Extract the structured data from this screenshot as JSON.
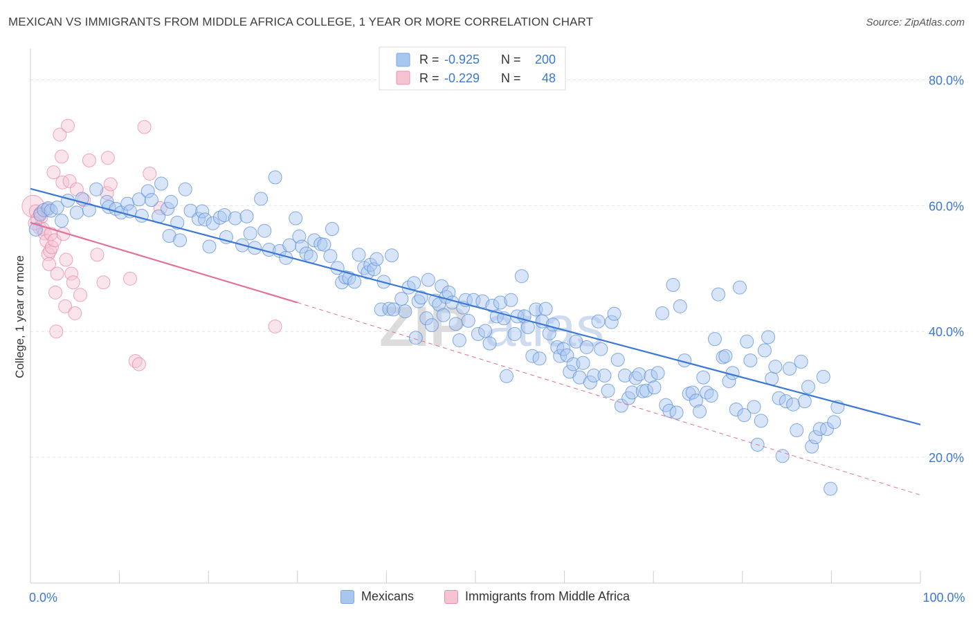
{
  "header": {
    "title": "MEXICAN VS IMMIGRANTS FROM MIDDLE AFRICA COLLEGE, 1 YEAR OR MORE CORRELATION CHART",
    "source": "Source: ZipAtlas.com"
  },
  "watermark": {
    "zip": "ZIP",
    "atlas": "atlas"
  },
  "legend": {
    "rows": [
      {
        "r_label": "R =",
        "r_value": "-0.925",
        "n_label": "N =",
        "n_value": "200",
        "color": "#a9c6ef"
      },
      {
        "r_label": "R =",
        "r_value": "-0.229",
        "n_label": "N =",
        "n_value": "48",
        "color": "#f5b8cb"
      }
    ]
  },
  "bottom_legend": {
    "items": [
      {
        "label": "Mexicans",
        "color": "#a9c6ef",
        "border": "#7aa7e0"
      },
      {
        "label": "Immigrants from Middle Africa",
        "color": "#f5c3d2",
        "border": "#e890aa"
      }
    ]
  },
  "chart_data": {
    "type": "scatter",
    "title": "MEXICAN VS IMMIGRANTS FROM MIDDLE AFRICA COLLEGE, 1 YEAR OR MORE CORRELATION CHART",
    "xlabel": "",
    "ylabel": "College, 1 year or more",
    "xlim": [
      0,
      100
    ],
    "ylim": [
      0,
      85
    ],
    "x_tick_labels": [
      {
        "value": 0,
        "label": "0.0%"
      },
      {
        "value": 100,
        "label": "100.0%"
      }
    ],
    "x_tick_marks": [
      0,
      10,
      20,
      30,
      40,
      50,
      60,
      70,
      80,
      90,
      100
    ],
    "y_ticks": [
      {
        "value": 20,
        "label": "20.0%"
      },
      {
        "value": 40,
        "label": "40.0%"
      },
      {
        "value": 60,
        "label": "60.0%"
      },
      {
        "value": 80,
        "label": "80.0%"
      }
    ],
    "grid": true,
    "series": [
      {
        "name": "Mexicans",
        "color": "#5b8fd9",
        "fill": "#a9c6ef",
        "r": -0.925,
        "n": 200,
        "trend": {
          "x": [
            0,
            100
          ],
          "y": [
            62.7,
            25.2
          ],
          "style": "solid",
          "color": "#3a78d4"
        },
        "points": [
          [
            0.6,
            56.2
          ],
          [
            1.1,
            58.6
          ],
          [
            1.5,
            59.3
          ],
          [
            2.0,
            59.6
          ],
          [
            2.3,
            59.2
          ],
          [
            3.0,
            59.7
          ],
          [
            3.5,
            57.6
          ],
          [
            4.2,
            60.8
          ],
          [
            5.2,
            58.9
          ],
          [
            5.8,
            61.1
          ],
          [
            6.6,
            59.3
          ],
          [
            7.4,
            62.6
          ],
          [
            8.6,
            60.6
          ],
          [
            8.8,
            59.8
          ],
          [
            9.6,
            59.5
          ],
          [
            10.2,
            58.9
          ],
          [
            10.9,
            60.3
          ],
          [
            11.2,
            59.1
          ],
          [
            12.2,
            61.0
          ],
          [
            12.5,
            58.4
          ],
          [
            13.2,
            62.3
          ],
          [
            13.6,
            60.9
          ],
          [
            14.4,
            58.3
          ],
          [
            14.7,
            63.5
          ],
          [
            15.4,
            59.5
          ],
          [
            15.8,
            60.6
          ],
          [
            15.6,
            55.2
          ],
          [
            16.5,
            57.3
          ],
          [
            16.8,
            54.5
          ],
          [
            17.4,
            62.6
          ],
          [
            18.0,
            59.2
          ],
          [
            18.9,
            57.9
          ],
          [
            19.3,
            59.1
          ],
          [
            19.6,
            57.8
          ],
          [
            20.1,
            53.5
          ],
          [
            20.5,
            57.2
          ],
          [
            21.3,
            58.1
          ],
          [
            21.8,
            58.5
          ],
          [
            22.0,
            55.0
          ],
          [
            23.0,
            58.0
          ],
          [
            23.8,
            53.7
          ],
          [
            24.3,
            58.3
          ],
          [
            24.7,
            55.6
          ],
          [
            25.2,
            53.3
          ],
          [
            25.9,
            61.1
          ],
          [
            26.3,
            56.0
          ],
          [
            26.8,
            53.0
          ],
          [
            27.5,
            64.5
          ],
          [
            28.0,
            52.8
          ],
          [
            28.7,
            51.7
          ],
          [
            29.1,
            53.7
          ],
          [
            29.8,
            58.0
          ],
          [
            30.2,
            55.1
          ],
          [
            30.5,
            53.5
          ],
          [
            31.0,
            52.4
          ],
          [
            31.5,
            51.9
          ],
          [
            31.9,
            54.5
          ],
          [
            32.6,
            53.9
          ],
          [
            33.0,
            53.8
          ],
          [
            33.7,
            52.0
          ],
          [
            33.9,
            56.3
          ],
          [
            34.5,
            50.1
          ],
          [
            35.0,
            47.8
          ],
          [
            35.4,
            48.6
          ],
          [
            35.8,
            48.5
          ],
          [
            36.4,
            47.9
          ],
          [
            36.9,
            52.2
          ],
          [
            37.5,
            50.1
          ],
          [
            37.9,
            49.4
          ],
          [
            38.2,
            50.6
          ],
          [
            38.6,
            49.9
          ],
          [
            38.9,
            51.5
          ],
          [
            39.4,
            43.5
          ],
          [
            39.7,
            47.9
          ],
          [
            40.3,
            43.6
          ],
          [
            40.6,
            52.1
          ],
          [
            40.8,
            43.5
          ],
          [
            41.7,
            45.2
          ],
          [
            42.1,
            43.2
          ],
          [
            42.5,
            47.0
          ],
          [
            43.1,
            47.7
          ],
          [
            43.3,
            39.0
          ],
          [
            43.6,
            44.8
          ],
          [
            43.9,
            45.4
          ],
          [
            44.5,
            42.1
          ],
          [
            44.7,
            48.2
          ],
          [
            45.1,
            41.0
          ],
          [
            45.5,
            44.9
          ],
          [
            45.9,
            44.3
          ],
          [
            46.2,
            47.2
          ],
          [
            46.4,
            42.6
          ],
          [
            46.7,
            45.5
          ],
          [
            47.0,
            46.2
          ],
          [
            47.4,
            44.6
          ],
          [
            47.8,
            41.2
          ],
          [
            48.2,
            38.6
          ],
          [
            48.6,
            43.8
          ],
          [
            48.9,
            45.0
          ],
          [
            49.2,
            41.7
          ],
          [
            49.8,
            45.0
          ],
          [
            50.3,
            39.6
          ],
          [
            50.8,
            44.8
          ],
          [
            51.1,
            40.1
          ],
          [
            51.6,
            38.1
          ],
          [
            51.9,
            44.1
          ],
          [
            52.4,
            42.4
          ],
          [
            52.8,
            44.6
          ],
          [
            53.2,
            42.1
          ],
          [
            53.5,
            32.9
          ],
          [
            54.0,
            45.0
          ],
          [
            54.4,
            39.6
          ],
          [
            54.7,
            42.4
          ],
          [
            55.2,
            48.8
          ],
          [
            55.5,
            42.4
          ],
          [
            55.9,
            40.7
          ],
          [
            56.4,
            36.1
          ],
          [
            56.8,
            43.5
          ],
          [
            57.2,
            35.7
          ],
          [
            57.5,
            41.6
          ],
          [
            57.9,
            43.6
          ],
          [
            58.3,
            39.7
          ],
          [
            58.7,
            41.1
          ],
          [
            59.2,
            37.5
          ],
          [
            59.5,
            36.1
          ],
          [
            59.9,
            37.2
          ],
          [
            60.3,
            36.2
          ],
          [
            60.6,
            33.6
          ],
          [
            61.0,
            34.8
          ],
          [
            61.3,
            38.4
          ],
          [
            61.7,
            32.7
          ],
          [
            62.1,
            35.0
          ],
          [
            62.5,
            37.5
          ],
          [
            62.9,
            31.9
          ],
          [
            63.3,
            33.0
          ],
          [
            63.8,
            41.6
          ],
          [
            64.1,
            37.2
          ],
          [
            64.5,
            33.0
          ],
          [
            64.9,
            30.6
          ],
          [
            65.3,
            41.5
          ],
          [
            65.6,
            42.8
          ],
          [
            66.0,
            35.5
          ],
          [
            66.4,
            28.2
          ],
          [
            66.8,
            33.0
          ],
          [
            67.2,
            29.4
          ],
          [
            67.6,
            30.3
          ],
          [
            68.0,
            32.6
          ],
          [
            68.4,
            33.2
          ],
          [
            68.8,
            30.5
          ],
          [
            69.2,
            30.6
          ],
          [
            69.7,
            32.9
          ],
          [
            70.1,
            31.1
          ],
          [
            70.5,
            33.4
          ],
          [
            71.0,
            42.9
          ],
          [
            71.4,
            28.3
          ],
          [
            71.8,
            27.4
          ],
          [
            72.2,
            47.4
          ],
          [
            72.6,
            27.1
          ],
          [
            73.0,
            44.0
          ],
          [
            73.5,
            35.4
          ],
          [
            74.0,
            30.1
          ],
          [
            74.4,
            30.3
          ],
          [
            74.8,
            29.0
          ],
          [
            75.2,
            27.3
          ],
          [
            75.6,
            32.7
          ],
          [
            76.0,
            30.3
          ],
          [
            76.5,
            29.8
          ],
          [
            76.9,
            38.8
          ],
          [
            77.3,
            45.9
          ],
          [
            77.8,
            35.9
          ],
          [
            78.1,
            36.1
          ],
          [
            78.5,
            32.1
          ],
          [
            78.9,
            33.4
          ],
          [
            79.3,
            27.6
          ],
          [
            79.7,
            47.0
          ],
          [
            80.2,
            26.7
          ],
          [
            80.5,
            38.4
          ],
          [
            80.9,
            35.4
          ],
          [
            81.3,
            28.0
          ],
          [
            81.7,
            22.0
          ],
          [
            82.1,
            25.8
          ],
          [
            82.5,
            37.0
          ],
          [
            82.9,
            39.1
          ],
          [
            83.3,
            32.5
          ],
          [
            83.7,
            34.4
          ],
          [
            84.1,
            29.4
          ],
          [
            84.5,
            20.2
          ],
          [
            84.9,
            28.9
          ],
          [
            85.3,
            34.1
          ],
          [
            85.7,
            28.4
          ],
          [
            86.1,
            24.3
          ],
          [
            86.6,
            35.2
          ],
          [
            87.0,
            28.9
          ],
          [
            87.4,
            31.2
          ],
          [
            87.8,
            21.7
          ],
          [
            88.2,
            23.2
          ],
          [
            88.7,
            24.5
          ],
          [
            89.1,
            32.8
          ],
          [
            89.5,
            24.5
          ],
          [
            89.9,
            15.0
          ],
          [
            90.3,
            25.6
          ],
          [
            90.7,
            28.0
          ]
        ]
      },
      {
        "name": "Immigrants from Middle Africa",
        "color": "#e88aa7",
        "fill": "#f5c3d2",
        "r": -0.229,
        "n": 48,
        "trend": {
          "x": [
            0,
            30
          ],
          "y": [
            57.3,
            44.6
          ],
          "style": "solid",
          "color": "#e0719a"
        },
        "trend_extended": {
          "x": [
            30,
            100
          ],
          "y": [
            44.6,
            14.0
          ],
          "style": "dashed",
          "color": "#e0719a"
        },
        "points": [
          [
            0.3,
            59.9
          ],
          [
            0.6,
            59.1
          ],
          [
            0.8,
            57.9
          ],
          [
            1.0,
            56.5
          ],
          [
            1.1,
            58.8
          ],
          [
            1.2,
            58.2
          ],
          [
            1.4,
            56.3
          ],
          [
            1.6,
            55.6
          ],
          [
            1.8,
            54.4
          ],
          [
            1.9,
            59.4
          ],
          [
            2.0,
            52.3
          ],
          [
            2.1,
            50.7
          ],
          [
            2.2,
            52.8
          ],
          [
            2.3,
            55.5
          ],
          [
            2.4,
            53.4
          ],
          [
            2.6,
            65.3
          ],
          [
            2.7,
            54.5
          ],
          [
            2.8,
            46.2
          ],
          [
            2.9,
            40.0
          ],
          [
            3.0,
            49.2
          ],
          [
            3.3,
            71.3
          ],
          [
            3.5,
            67.8
          ],
          [
            3.6,
            63.7
          ],
          [
            3.7,
            55.5
          ],
          [
            3.9,
            44.0
          ],
          [
            4.0,
            51.4
          ],
          [
            4.2,
            72.7
          ],
          [
            4.4,
            63.9
          ],
          [
            4.6,
            49.2
          ],
          [
            4.8,
            47.8
          ],
          [
            5.0,
            42.9
          ],
          [
            5.2,
            62.6
          ],
          [
            5.6,
            45.8
          ],
          [
            6.0,
            60.9
          ],
          [
            6.6,
            67.2
          ],
          [
            7.5,
            52.2
          ],
          [
            8.2,
            47.8
          ],
          [
            8.6,
            62.0
          ],
          [
            8.7,
            67.6
          ],
          [
            9.0,
            63.4
          ],
          [
            11.2,
            48.4
          ],
          [
            11.8,
            35.3
          ],
          [
            12.2,
            34.8
          ],
          [
            12.8,
            72.5
          ],
          [
            13.4,
            65.1
          ],
          [
            14.6,
            59.6
          ],
          [
            27.5,
            40.8
          ],
          [
            0.5,
            57.2
          ]
        ]
      }
    ]
  }
}
